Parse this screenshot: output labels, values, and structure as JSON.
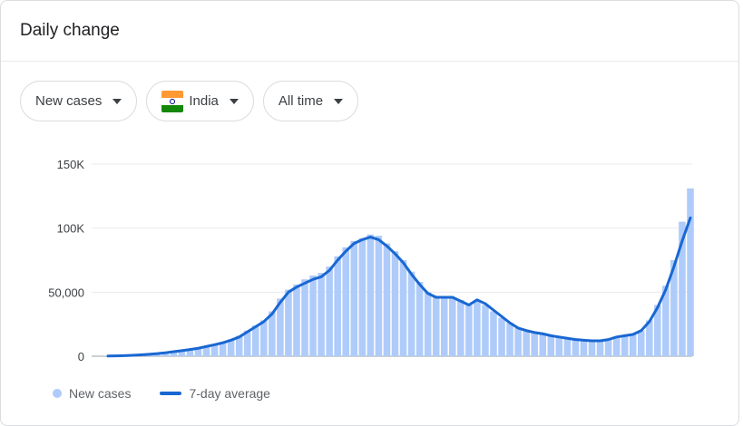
{
  "header": {
    "title": "Daily change"
  },
  "filters": {
    "metric": "New cases",
    "country": "India",
    "range": "All time"
  },
  "colors": {
    "bars": "#aecbfa",
    "line": "#1967d2",
    "grid": "#e8eaed"
  },
  "chart_data": {
    "type": "bar",
    "yticks": [
      "150K",
      "100K",
      "50,000",
      "0"
    ],
    "ylim": [
      0,
      150000
    ],
    "grid": true,
    "legend_position": "bottom-left",
    "legend": {
      "bars": "New cases",
      "line": "7-day average"
    },
    "series": [
      {
        "name": "New cases",
        "kind": "bar",
        "values": [
          200,
          300,
          500,
          800,
          1200,
          1600,
          2200,
          3000,
          3800,
          4500,
          5500,
          6500,
          8000,
          9500,
          11000,
          13000,
          16000,
          20000,
          24000,
          28000,
          35000,
          45000,
          52000,
          56000,
          60000,
          63000,
          65000,
          70000,
          78000,
          85000,
          90000,
          92000,
          95000,
          94000,
          88000,
          82000,
          75000,
          66000,
          58000,
          50000,
          46000,
          46000,
          46000,
          44000,
          40000,
          44000,
          40000,
          35000,
          30000,
          26000,
          22000,
          20000,
          19000,
          18000,
          16000,
          15000,
          14000,
          13000,
          12500,
          12000,
          12000,
          13000,
          15000,
          16000,
          17000,
          20000,
          28000,
          40000,
          55000,
          75000,
          105000,
          131000
        ]
      },
      {
        "name": "7-day average",
        "kind": "line",
        "values": [
          150,
          250,
          400,
          700,
          1100,
          1500,
          2000,
          2700,
          3500,
          4300,
          5200,
          6200,
          7600,
          9000,
          10500,
          12500,
          15000,
          19000,
          23000,
          27000,
          33000,
          42000,
          50000,
          54000,
          57000,
          60000,
          62000,
          67000,
          75000,
          82000,
          88000,
          91000,
          93000,
          91000,
          86000,
          80000,
          73000,
          64000,
          56000,
          49000,
          46000,
          46000,
          46000,
          43000,
          40000,
          44000,
          41000,
          36000,
          31000,
          26000,
          22000,
          20000,
          18500,
          17500,
          16000,
          15000,
          14000,
          13000,
          12500,
          12000,
          12000,
          13000,
          15000,
          16000,
          17000,
          20000,
          27000,
          38000,
          52000,
          70000,
          90000,
          108000
        ]
      }
    ]
  }
}
